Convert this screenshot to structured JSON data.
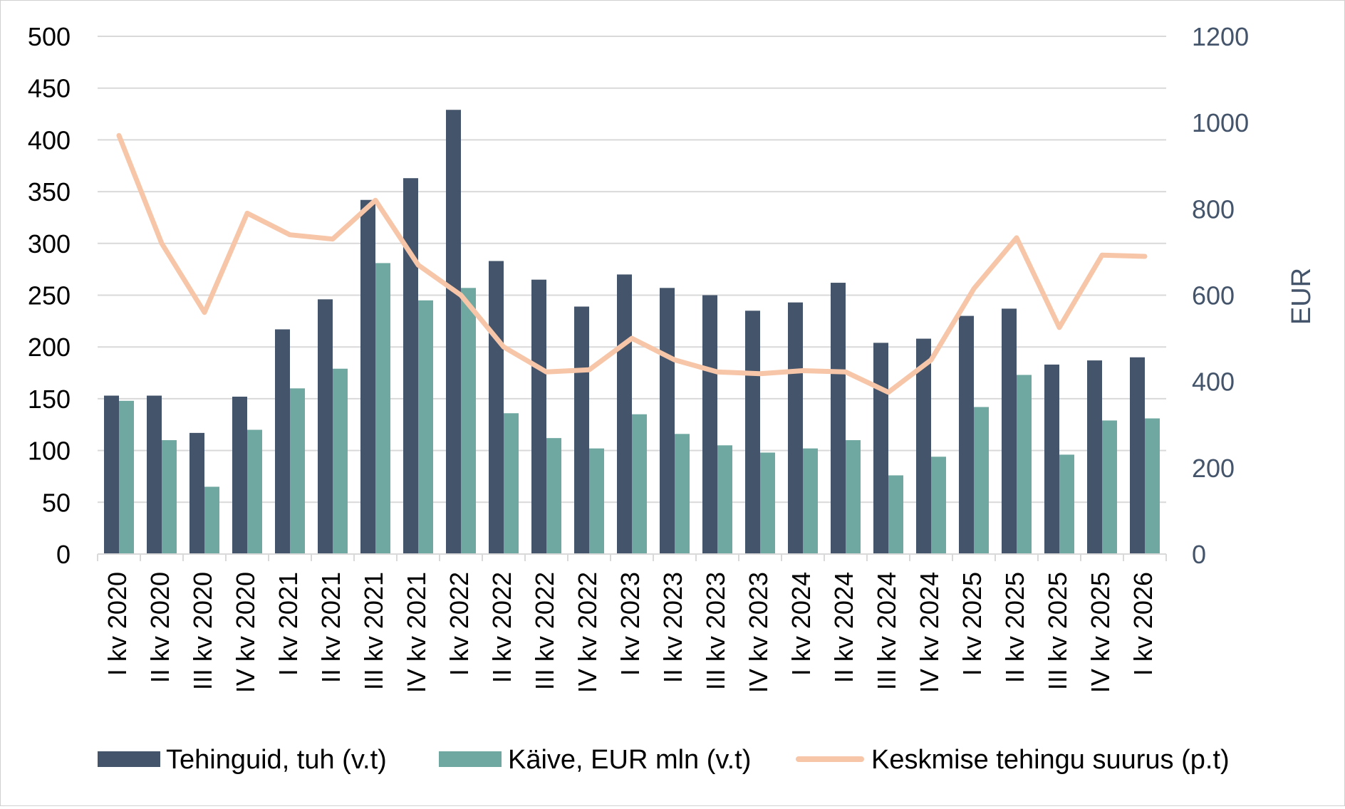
{
  "chart_data": {
    "type": "bar+line",
    "categories": [
      "I kv 2020",
      "II kv 2020",
      "III kv 2020",
      "IV kv 2020",
      "I kv 2021",
      "II kv 2021",
      "III kv 2021",
      "IV kv 2021",
      "I kv 2022",
      "II kv 2022",
      "III kv 2022",
      "IV kv 2022",
      "I kv 2023",
      "II kv 2023",
      "III kv 2023",
      "IV kv 2023",
      "I kv 2024",
      "II kv 2024",
      "III kv 2024",
      "IV kv 2024",
      "I kv 2025",
      "II kv 2025",
      "III kv 2025",
      "IV kv 2025",
      "I kv 2026"
    ],
    "series": [
      {
        "name": "Tehinguid, tuh (v.t)",
        "type": "bar",
        "axis": "left",
        "color": "#44546a",
        "values": [
          153,
          153,
          117,
          152,
          217,
          246,
          342,
          363,
          429,
          283,
          265,
          239,
          270,
          257,
          250,
          235,
          243,
          262,
          204,
          208,
          230,
          237,
          183,
          187,
          190
        ]
      },
      {
        "name": "Käive, EUR mln (v.t)",
        "type": "bar",
        "axis": "left",
        "color": "#6fa8a0",
        "values": [
          148,
          110,
          65,
          120,
          160,
          179,
          281,
          245,
          257,
          136,
          112,
          102,
          135,
          116,
          105,
          98,
          102,
          110,
          76,
          94,
          142,
          173,
          96,
          129,
          131
        ]
      },
      {
        "name": "Keskmise tehingu suurus (p.t)",
        "type": "line",
        "axis": "right",
        "color": "#f7c6a8",
        "values": [
          970,
          720,
          560,
          790,
          740,
          730,
          820,
          670,
          600,
          480,
          422,
          427,
          500,
          450,
          422,
          418,
          425,
          422,
          375,
          450,
          615,
          733,
          525,
          693,
          690
        ]
      }
    ],
    "y_left": {
      "min": 0,
      "max": 500,
      "ticks": [
        0,
        50,
        100,
        150,
        200,
        250,
        300,
        350,
        400,
        450,
        500
      ]
    },
    "y_right": {
      "min": 0,
      "max": 1200,
      "ticks": [
        0,
        200,
        400,
        600,
        800,
        1000,
        1200
      ],
      "label": "EUR"
    },
    "grid": true,
    "legend_position": "bottom"
  }
}
